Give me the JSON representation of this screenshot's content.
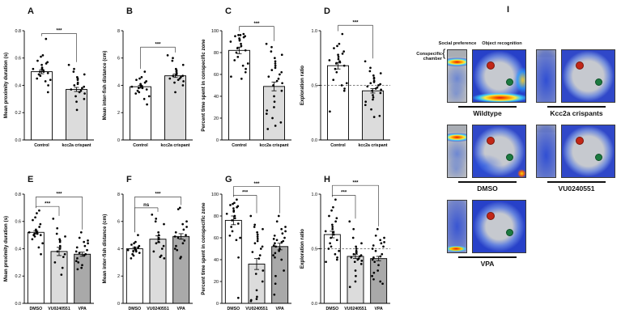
{
  "panel_i": {
    "letter": "I",
    "col_headers": [
      "Social preference",
      "Object recognition"
    ],
    "side_label": "Conspecific chamber",
    "groups": [
      {
        "label": "Wildtype",
        "row": 0,
        "col": 0,
        "social": "hot-top",
        "square": "wt"
      },
      {
        "label": "Kcc2a crispants",
        "row": 0,
        "col": 1,
        "social": "diffuse",
        "square": "plain"
      },
      {
        "label": "DMSO",
        "row": 1,
        "col": 0,
        "social": "hot-top",
        "square": "dmso"
      },
      {
        "label": "VU0240551",
        "row": 1,
        "col": 1,
        "social": "diffuse",
        "square": "plain"
      },
      {
        "label": "VPA",
        "row": 2,
        "col": 0,
        "social": "hot-bottom",
        "square": "vpa"
      }
    ],
    "object_marker_colors": {
      "red": "#c22717",
      "green": "#1c7a40"
    }
  },
  "chart_data": [
    {
      "id": "A",
      "type": "bar",
      "ylabel": "Mean proximity duration (s)",
      "ylim": [
        0,
        0.8
      ],
      "yticks": [
        0,
        0.2,
        0.4,
        0.6,
        0.8
      ],
      "tick_decimals": 1,
      "refline": null,
      "groups": [
        {
          "label": "Control",
          "mean": 0.5,
          "sem": 0.015,
          "fill": "#ffffff",
          "points": [
            0.74,
            0.62,
            0.61,
            0.58,
            0.57,
            0.56,
            0.55,
            0.53,
            0.52,
            0.52,
            0.51,
            0.5,
            0.5,
            0.49,
            0.48,
            0.47,
            0.45,
            0.44,
            0.43,
            0.4,
            0.35
          ]
        },
        {
          "label": "kcc2a crispant",
          "mean": 0.37,
          "sem": 0.015,
          "fill": "#dcdcdc",
          "points": [
            0.55,
            0.52,
            0.5,
            0.48,
            0.46,
            0.45,
            0.44,
            0.42,
            0.41,
            0.4,
            0.39,
            0.38,
            0.37,
            0.36,
            0.35,
            0.34,
            0.32,
            0.3,
            0.28,
            0.22
          ]
        }
      ],
      "sig": [
        {
          "a": 0,
          "b": 1,
          "label": "***",
          "y": 0.78
        }
      ]
    },
    {
      "id": "B",
      "type": "bar",
      "ylabel": "Mean inter-fish distance (cm)",
      "ylim": [
        0,
        8
      ],
      "yticks": [
        0,
        2,
        4,
        6,
        8
      ],
      "tick_decimals": 0,
      "refline": null,
      "groups": [
        {
          "label": "Control",
          "mean": 3.9,
          "sem": 0.1,
          "fill": "#ffffff",
          "points": [
            5.0,
            4.6,
            4.5,
            4.4,
            4.3,
            4.2,
            4.1,
            4.0,
            4.0,
            3.9,
            3.9,
            3.8,
            3.8,
            3.7,
            3.6,
            3.5,
            3.4,
            3.2,
            3.0,
            2.6
          ]
        },
        {
          "label": "kcc2a crispant",
          "mean": 4.7,
          "sem": 0.12,
          "fill": "#dcdcdc",
          "points": [
            6.2,
            6.0,
            5.8,
            5.5,
            5.2,
            5.1,
            5.0,
            4.9,
            4.8,
            4.7,
            4.7,
            4.6,
            4.5,
            4.5,
            4.4,
            4.3,
            4.2,
            4.0,
            3.5
          ]
        }
      ],
      "sig": [
        {
          "a": 0,
          "b": 1,
          "label": "***",
          "y": 6.8
        }
      ]
    },
    {
      "id": "C",
      "type": "bar",
      "ylabel": "Percent time spent in conspecific zone",
      "ylim": [
        0,
        100
      ],
      "yticks": [
        0,
        20,
        40,
        60,
        80,
        100
      ],
      "tick_decimals": 0,
      "refline": null,
      "groups": [
        {
          "label": "Control",
          "mean": 82,
          "sem": 3,
          "fill": "#ffffff",
          "points": [
            97,
            96,
            96,
            95,
            95,
            94,
            93,
            92,
            91,
            90,
            88,
            86,
            84,
            82,
            80,
            76,
            73,
            70,
            68,
            65,
            62,
            58,
            56
          ]
        },
        {
          "label": "kcc2a crispant",
          "mean": 49,
          "sem": 4,
          "fill": "#dcdcdc",
          "points": [
            88,
            85,
            81,
            78,
            75,
            72,
            70,
            68,
            66,
            64,
            62,
            60,
            58,
            56,
            54,
            52,
            50,
            45,
            40,
            35,
            30,
            27,
            24,
            20,
            16,
            13,
            10
          ]
        }
      ],
      "sig": [
        {
          "a": 0,
          "b": 1,
          "label": "***",
          "y": 104
        }
      ]
    },
    {
      "id": "D",
      "type": "bar",
      "ylabel": "Exploration ratio",
      "ylim": [
        0,
        1.0
      ],
      "yticks": [
        0,
        0.5,
        1.0
      ],
      "tick_decimals": 1,
      "refline": 0.5,
      "groups": [
        {
          "label": "Control",
          "mean": 0.68,
          "sem": 0.03,
          "fill": "#ffffff",
          "points": [
            0.97,
            0.88,
            0.86,
            0.84,
            0.81,
            0.79,
            0.78,
            0.76,
            0.74,
            0.73,
            0.72,
            0.71,
            0.7,
            0.68,
            0.65,
            0.62,
            0.55,
            0.52,
            0.5,
            0.47,
            0.45,
            0.26
          ]
        },
        {
          "label": "kcc2a crispant",
          "mean": 0.45,
          "sem": 0.02,
          "fill": "#dcdcdc",
          "points": [
            0.72,
            0.66,
            0.63,
            0.61,
            0.59,
            0.57,
            0.56,
            0.54,
            0.53,
            0.52,
            0.51,
            0.5,
            0.49,
            0.48,
            0.47,
            0.46,
            0.45,
            0.43,
            0.41,
            0.39,
            0.37,
            0.35,
            0.32,
            0.28,
            0.22,
            0.21
          ]
        }
      ],
      "sig": [
        {
          "a": 0,
          "b": 1,
          "label": "***",
          "y": 1.05
        }
      ]
    },
    {
      "id": "E",
      "type": "bar",
      "ylabel": "Mean proximity duration (s)",
      "ylim": [
        0,
        0.8
      ],
      "yticks": [
        0,
        0.2,
        0.4,
        0.6,
        0.8
      ],
      "tick_decimals": 1,
      "refline": null,
      "groups": [
        {
          "label": "DMSO",
          "mean": 0.52,
          "sem": 0.012,
          "fill": "#ffffff",
          "points": [
            0.68,
            0.66,
            0.63,
            0.61,
            0.58,
            0.56,
            0.54,
            0.53,
            0.53,
            0.52,
            0.52,
            0.51,
            0.51,
            0.5,
            0.5,
            0.49,
            0.47,
            0.44,
            0.41,
            0.36
          ]
        },
        {
          "label": "VU0240551",
          "mean": 0.38,
          "sem": 0.03,
          "fill": "#dcdcdc",
          "points": [
            0.62,
            0.55,
            0.51,
            0.49,
            0.47,
            0.46,
            0.45,
            0.42,
            0.4,
            0.38,
            0.36,
            0.34,
            0.3,
            0.26,
            0.21
          ]
        },
        {
          "label": "VPA",
          "mean": 0.36,
          "sem": 0.015,
          "fill": "#a9a9a9",
          "points": [
            0.52,
            0.48,
            0.46,
            0.45,
            0.44,
            0.42,
            0.41,
            0.39,
            0.38,
            0.37,
            0.36,
            0.35,
            0.33,
            0.31,
            0.3,
            0.28,
            0.26,
            0.25
          ]
        }
      ],
      "sig": [
        {
          "a": 0,
          "b": 1,
          "label": "***",
          "y": 0.71
        },
        {
          "a": 0,
          "b": 2,
          "label": "***",
          "y": 0.78
        }
      ]
    },
    {
      "id": "F",
      "type": "bar",
      "ylabel": "Mean inter-fish distance (cm)",
      "ylim": [
        0,
        8
      ],
      "yticks": [
        0,
        2,
        4,
        6,
        8
      ],
      "tick_decimals": 0,
      "refline": null,
      "groups": [
        {
          "label": "DMSO",
          "mean": 4.0,
          "sem": 0.1,
          "fill": "#ffffff",
          "points": [
            5.0,
            4.5,
            4.4,
            4.3,
            4.2,
            4.1,
            4.1,
            4.0,
            4.0,
            3.9,
            3.9,
            3.8,
            3.8,
            3.7,
            3.6,
            3.5,
            3.3
          ]
        },
        {
          "label": "VU0240551",
          "mean": 4.7,
          "sem": 0.25,
          "fill": "#dcdcdc",
          "points": [
            6.5,
            6.2,
            6.0,
            5.8,
            5.2,
            5.0,
            4.8,
            4.7,
            4.5,
            4.4,
            4.2,
            4.0,
            3.8,
            3.5,
            3.4,
            3.3
          ]
        },
        {
          "label": "VPA",
          "mean": 4.9,
          "sem": 0.2,
          "fill": "#a9a9a9",
          "points": [
            7.0,
            6.9,
            6.0,
            5.8,
            5.6,
            5.4,
            5.2,
            5.0,
            4.9,
            4.8,
            4.6,
            4.4,
            4.2,
            4.0,
            3.9,
            3.4,
            3.3
          ]
        }
      ],
      "sig": [
        {
          "a": 0,
          "b": 1,
          "label": "ns",
          "y": 7.0
        },
        {
          "a": 0,
          "b": 2,
          "label": "***",
          "y": 7.8
        }
      ]
    },
    {
      "id": "G",
      "type": "bar",
      "ylabel": "Percent time spent in conspecific zone",
      "ylim": [
        0,
        100
      ],
      "yticks": [
        0,
        20,
        40,
        60,
        80,
        100
      ],
      "tick_decimals": 0,
      "refline": null,
      "groups": [
        {
          "label": "DMSO",
          "mean": 76,
          "sem": 4,
          "fill": "#ffffff",
          "points": [
            95,
            92,
            91,
            90,
            89,
            88,
            87,
            85,
            84,
            82,
            80,
            78,
            76,
            73,
            70,
            66,
            62,
            60,
            58,
            42,
            5
          ]
        },
        {
          "label": "VU0240551",
          "mean": 36,
          "sem": 5,
          "fill": "#dcdcdc",
          "points": [
            80,
            72,
            70,
            68,
            65,
            63,
            61,
            59,
            57,
            55,
            52,
            50,
            47,
            44,
            41,
            30,
            27,
            20,
            12,
            6,
            4,
            3,
            2
          ]
        },
        {
          "label": "VPA",
          "mean": 52,
          "sem": 3,
          "fill": "#a9a9a9",
          "points": [
            80,
            75,
            70,
            68,
            66,
            64,
            62,
            60,
            59,
            58,
            57,
            56,
            55,
            53,
            52,
            50,
            48,
            46,
            44,
            42,
            40,
            30,
            25,
            18,
            8
          ]
        }
      ],
      "sig": [
        {
          "a": 0,
          "b": 1,
          "label": "***",
          "y": 99
        },
        {
          "a": 0,
          "b": 2,
          "label": "***",
          "y": 107
        }
      ]
    },
    {
      "id": "H",
      "type": "bar",
      "ylabel": "Exploration ratio",
      "ylim": [
        0,
        1.0
      ],
      "yticks": [
        0,
        0.5,
        1.0
      ],
      "tick_decimals": 1,
      "refline": 0.5,
      "groups": [
        {
          "label": "DMSO",
          "mean": 0.63,
          "sem": 0.03,
          "fill": "#ffffff",
          "points": [
            0.95,
            0.88,
            0.85,
            0.8,
            0.78,
            0.75,
            0.72,
            0.7,
            0.68,
            0.66,
            0.65,
            0.63,
            0.6,
            0.58,
            0.55,
            0.52,
            0.5,
            0.48,
            0.45,
            0.42,
            0.4,
            0.38
          ]
        },
        {
          "label": "VU0240551",
          "mean": 0.43,
          "sem": 0.02,
          "fill": "#dcdcdc",
          "points": [
            0.75,
            0.68,
            0.6,
            0.55,
            0.52,
            0.5,
            0.48,
            0.47,
            0.46,
            0.45,
            0.44,
            0.43,
            0.42,
            0.41,
            0.4,
            0.39,
            0.38,
            0.36,
            0.3,
            0.25,
            0.2,
            0.15
          ]
        },
        {
          "label": "VPA",
          "mean": 0.41,
          "sem": 0.02,
          "fill": "#a9a9a9",
          "points": [
            0.68,
            0.62,
            0.6,
            0.58,
            0.56,
            0.55,
            0.53,
            0.52,
            0.5,
            0.48,
            0.45,
            0.43,
            0.42,
            0.4,
            0.38,
            0.35,
            0.3,
            0.28,
            0.25,
            0.22,
            0.2,
            0.18
          ]
        }
      ],
      "sig": [
        {
          "a": 0,
          "b": 1,
          "label": "***",
          "y": 0.99
        },
        {
          "a": 0,
          "b": 2,
          "label": "***",
          "y": 1.08
        }
      ]
    }
  ]
}
